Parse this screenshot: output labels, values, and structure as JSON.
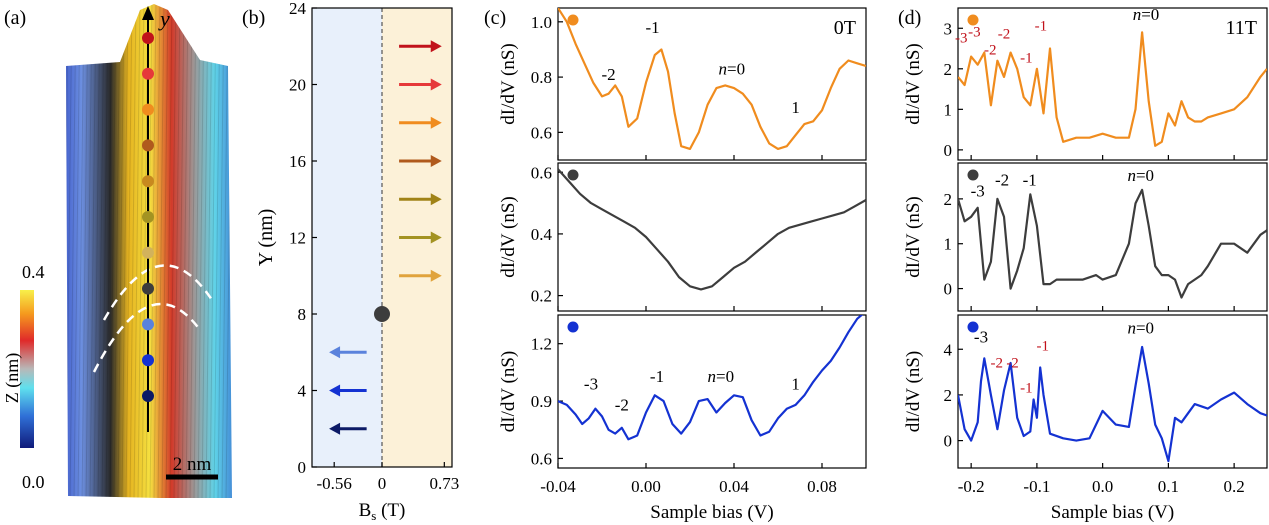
{
  "figure": {
    "panel_labels": [
      "(a)",
      "(b)",
      "(c)",
      "(d)"
    ]
  },
  "panel_a": {
    "axis_label": "y",
    "colorbar": {
      "label": "Z (nm)",
      "max_label": "0.4",
      "min_label": "0.0"
    },
    "scalebar_label": "2 nm",
    "dot_colors": [
      "#c1121b",
      "#e6393a",
      "#f08c1e",
      "#b05a1d",
      "#c8891f",
      "#a39322",
      "#d2b25c",
      "#3d3d3d",
      "#5a82dc",
      "#1432d2",
      "#0c1a66"
    ]
  },
  "chart_data": [
    {
      "id": "b",
      "type": "scatter",
      "title": "(b)",
      "xlabel": "Bs (T)",
      "ylabel": "Y (nm)",
      "xlim": [
        -0.82,
        0.82
      ],
      "ylim": [
        0,
        24
      ],
      "xticks": [
        "-0.56",
        "0",
        "0.73"
      ],
      "xtick_values": [
        -0.56,
        0,
        0.73
      ],
      "yticks": [
        0,
        4,
        8,
        12,
        16,
        20,
        24
      ],
      "regions": [
        {
          "from": -0.82,
          "to": 0,
          "color": "#e8f0fb"
        },
        {
          "from": 0,
          "to": 0.82,
          "color": "#fcf1d8"
        }
      ],
      "points": [
        {
          "x": 0,
          "y": 8,
          "color": "#3d3d3d"
        }
      ],
      "arrows": [
        {
          "y": 22,
          "dir": 1,
          "color": "#c1121b"
        },
        {
          "y": 20,
          "dir": 1,
          "color": "#e6393a"
        },
        {
          "y": 18,
          "dir": 1,
          "color": "#f08c1e"
        },
        {
          "y": 16,
          "dir": 1,
          "color": "#b05a1d"
        },
        {
          "y": 14,
          "dir": 1,
          "color": "#a08317"
        },
        {
          "y": 12,
          "dir": 1,
          "color": "#a39322"
        },
        {
          "y": 10,
          "dir": 1,
          "color": "#e0a33c"
        },
        {
          "y": 6,
          "dir": -1,
          "color": "#5a82dc"
        },
        {
          "y": 4,
          "dir": -1,
          "color": "#1432d2"
        },
        {
          "y": 2,
          "dir": -1,
          "color": "#0c1a66"
        }
      ]
    },
    {
      "id": "c",
      "type": "line",
      "title": "(c)",
      "xlabel": "Sample bias (V)",
      "xlim": [
        -0.04,
        0.1
      ],
      "xticks": [
        "-0.04",
        "0.00",
        "0.04",
        "0.08"
      ],
      "xtick_values": [
        -0.04,
        0.0,
        0.04,
        0.08
      ],
      "subplots": [
        {
          "ylabel": "dI/dV (nS)",
          "ylim": [
            0.5,
            1.05
          ],
          "yticks": [
            0.6,
            0.8,
            1.0
          ],
          "ytick_labels": [
            "0.6",
            "0.8",
            "1.0"
          ],
          "color": "#f08c1e",
          "field_label": "0T",
          "x": [
            -0.04,
            -0.036,
            -0.032,
            -0.028,
            -0.024,
            -0.02,
            -0.017,
            -0.014,
            -0.011,
            -0.008,
            -0.004,
            0,
            0.004,
            0.007,
            0.01,
            0.013,
            0.016,
            0.02,
            0.024,
            0.028,
            0.032,
            0.036,
            0.04,
            0.044,
            0.048,
            0.052,
            0.056,
            0.06,
            0.064,
            0.068,
            0.072,
            0.076,
            0.08,
            0.084,
            0.088,
            0.092,
            0.096,
            0.1
          ],
          "y": [
            1.05,
            1.0,
            0.92,
            0.85,
            0.78,
            0.73,
            0.74,
            0.77,
            0.73,
            0.62,
            0.65,
            0.78,
            0.88,
            0.9,
            0.82,
            0.67,
            0.55,
            0.54,
            0.6,
            0.7,
            0.76,
            0.77,
            0.76,
            0.74,
            0.7,
            0.62,
            0.56,
            0.54,
            0.55,
            0.59,
            0.63,
            0.64,
            0.68,
            0.76,
            0.83,
            0.86,
            0.85,
            0.84
          ],
          "annotations": [
            {
              "text": "-2",
              "x": -0.017,
              "y": 0.79,
              "color": "#000000"
            },
            {
              "text": "-1",
              "x": 0.003,
              "y": 0.96,
              "color": "#000000"
            },
            {
              "text": "n=0",
              "x": 0.039,
              "y": 0.81,
              "color": "#000000"
            },
            {
              "text": "1",
              "x": 0.068,
              "y": 0.67,
              "color": "#000000"
            }
          ]
        },
        {
          "ylabel": "dI/dV (nS)",
          "ylim": [
            0.15,
            0.63
          ],
          "yticks": [
            0.2,
            0.4,
            0.6
          ],
          "ytick_labels": [
            "0.2",
            "0.4",
            "0.6"
          ],
          "color": "#3d3d3d",
          "x": [
            -0.04,
            -0.035,
            -0.03,
            -0.025,
            -0.02,
            -0.015,
            -0.01,
            -0.005,
            0,
            0.005,
            0.01,
            0.015,
            0.02,
            0.025,
            0.03,
            0.035,
            0.04,
            0.045,
            0.05,
            0.055,
            0.06,
            0.065,
            0.07,
            0.075,
            0.08,
            0.085,
            0.09,
            0.095,
            0.1
          ],
          "y": [
            0.61,
            0.57,
            0.53,
            0.5,
            0.48,
            0.46,
            0.44,
            0.42,
            0.39,
            0.35,
            0.31,
            0.26,
            0.23,
            0.22,
            0.23,
            0.26,
            0.29,
            0.31,
            0.34,
            0.37,
            0.4,
            0.42,
            0.43,
            0.44,
            0.45,
            0.46,
            0.47,
            0.49,
            0.51
          ],
          "annotations": []
        },
        {
          "ylabel": "dI/dV (nS)",
          "ylim": [
            0.55,
            1.35
          ],
          "yticks": [
            0.6,
            0.9,
            1.2
          ],
          "ytick_labels": [
            "0.6",
            "0.9",
            "1.2"
          ],
          "color": "#1432d2",
          "x": [
            -0.04,
            -0.036,
            -0.032,
            -0.029,
            -0.026,
            -0.023,
            -0.02,
            -0.017,
            -0.014,
            -0.011,
            -0.008,
            -0.004,
            0,
            0.004,
            0.008,
            0.012,
            0.016,
            0.02,
            0.024,
            0.028,
            0.032,
            0.036,
            0.04,
            0.044,
            0.048,
            0.052,
            0.056,
            0.06,
            0.064,
            0.068,
            0.072,
            0.076,
            0.08,
            0.084,
            0.088,
            0.092,
            0.096,
            0.1
          ],
          "y": [
            0.9,
            0.88,
            0.83,
            0.78,
            0.81,
            0.86,
            0.82,
            0.75,
            0.73,
            0.76,
            0.7,
            0.72,
            0.84,
            0.93,
            0.9,
            0.78,
            0.73,
            0.79,
            0.9,
            0.91,
            0.84,
            0.89,
            0.93,
            0.92,
            0.8,
            0.72,
            0.74,
            0.81,
            0.86,
            0.88,
            0.93,
            1.0,
            1.06,
            1.11,
            1.18,
            1.26,
            1.33,
            1.37
          ],
          "annotations": [
            {
              "text": "-3",
              "x": -0.025,
              "y": 0.96,
              "color": "#000000"
            },
            {
              "text": "-2",
              "x": -0.011,
              "y": 0.85,
              "color": "#000000"
            },
            {
              "text": "-1",
              "x": 0.005,
              "y": 1.0,
              "color": "#000000"
            },
            {
              "text": "n=0",
              "x": 0.034,
              "y": 1.0,
              "color": "#000000"
            },
            {
              "text": "1",
              "x": 0.068,
              "y": 0.96,
              "color": "#000000"
            }
          ]
        }
      ]
    },
    {
      "id": "d",
      "type": "line",
      "title": "(d)",
      "xlabel": "Sample bias (V)",
      "xlim": [
        -0.22,
        0.25
      ],
      "xticks": [
        "-0.2",
        "-0.1",
        "0.0",
        "0.1",
        "0.2"
      ],
      "xtick_values": [
        -0.2,
        -0.1,
        0.0,
        0.1,
        0.2
      ],
      "subplots": [
        {
          "ylabel": "dI/dV (nS)",
          "ylim": [
            -0.25,
            3.5
          ],
          "yticks": [
            0,
            1,
            2,
            3
          ],
          "ytick_labels": [
            "0",
            "1",
            "2",
            "3"
          ],
          "color": "#f08c1e",
          "field_label": "11T",
          "x": [
            -0.22,
            -0.21,
            -0.2,
            -0.19,
            -0.18,
            -0.17,
            -0.16,
            -0.15,
            -0.14,
            -0.13,
            -0.12,
            -0.11,
            -0.1,
            -0.09,
            -0.08,
            -0.07,
            -0.06,
            -0.04,
            -0.02,
            0,
            0.02,
            0.04,
            0.05,
            0.06,
            0.07,
            0.08,
            0.09,
            0.1,
            0.11,
            0.12,
            0.13,
            0.14,
            0.15,
            0.16,
            0.18,
            0.2,
            0.22,
            0.24,
            0.25
          ],
          "y": [
            1.8,
            1.6,
            2.3,
            2.1,
            2.4,
            1.1,
            2.2,
            1.8,
            2.4,
            2.0,
            1.3,
            1.1,
            2.0,
            0.9,
            2.5,
            0.8,
            0.2,
            0.3,
            0.3,
            0.4,
            0.3,
            0.3,
            1.0,
            2.9,
            1.2,
            0.1,
            0.2,
            0.9,
            0.6,
            1.2,
            0.8,
            0.7,
            0.7,
            0.8,
            0.9,
            1.0,
            1.3,
            1.8,
            2.0
          ],
          "annotations": [
            {
              "text": "-3",
              "x": -0.215,
              "y": 2.65,
              "color": "#c1121b"
            },
            {
              "text": "-3",
              "x": -0.195,
              "y": 2.8,
              "color": "#c1121b"
            },
            {
              "text": "-2",
              "x": -0.171,
              "y": 2.35,
              "color": "#c1121b"
            },
            {
              "text": "-2",
              "x": -0.15,
              "y": 2.75,
              "color": "#c1121b"
            },
            {
              "text": "-1",
              "x": -0.116,
              "y": 2.15,
              "color": "#c1121b"
            },
            {
              "text": "-1",
              "x": -0.094,
              "y": 2.95,
              "color": "#c1121b"
            },
            {
              "text": "n=0",
              "x": 0.066,
              "y": 3.2,
              "color": "#000000"
            }
          ]
        },
        {
          "ylabel": "dI/dV (nS)",
          "ylim": [
            -0.5,
            2.8
          ],
          "yticks": [
            0,
            1,
            2
          ],
          "ytick_labels": [
            "0",
            "1",
            "2"
          ],
          "color": "#3d3d3d",
          "x": [
            -0.22,
            -0.21,
            -0.2,
            -0.19,
            -0.18,
            -0.17,
            -0.16,
            -0.15,
            -0.14,
            -0.13,
            -0.12,
            -0.11,
            -0.1,
            -0.09,
            -0.08,
            -0.07,
            -0.05,
            -0.03,
            -0.01,
            0,
            0.02,
            0.04,
            0.05,
            0.06,
            0.07,
            0.08,
            0.09,
            0.1,
            0.11,
            0.12,
            0.13,
            0.14,
            0.15,
            0.16,
            0.18,
            0.2,
            0.22,
            0.24,
            0.25
          ],
          "y": [
            2.0,
            1.5,
            1.6,
            1.8,
            0.2,
            0.6,
            2.0,
            1.6,
            0.0,
            0.4,
            0.9,
            2.1,
            1.4,
            0.1,
            0.1,
            0.2,
            0.2,
            0.2,
            0.3,
            0.2,
            0.3,
            1.0,
            1.9,
            2.2,
            1.4,
            0.5,
            0.3,
            0.3,
            0.2,
            -0.2,
            0.1,
            0.2,
            0.3,
            0.5,
            1.0,
            1.0,
            0.8,
            1.2,
            1.3
          ],
          "annotations": [
            {
              "text": "-3",
              "x": -0.19,
              "y": 2.05,
              "color": "#000000"
            },
            {
              "text": "-2",
              "x": -0.153,
              "y": 2.3,
              "color": "#000000"
            },
            {
              "text": "-1",
              "x": -0.111,
              "y": 2.3,
              "color": "#000000"
            },
            {
              "text": "n=0",
              "x": 0.058,
              "y": 2.4,
              "color": "#000000"
            }
          ]
        },
        {
          "ylabel": "dI/dV (nS)",
          "ylim": [
            -1.2,
            5.5
          ],
          "yticks": [
            0,
            2,
            4
          ],
          "ytick_labels": [
            "0",
            "2",
            "4"
          ],
          "color": "#1432d2",
          "x": [
            -0.22,
            -0.21,
            -0.2,
            -0.19,
            -0.185,
            -0.18,
            -0.17,
            -0.16,
            -0.15,
            -0.14,
            -0.13,
            -0.12,
            -0.11,
            -0.105,
            -0.1,
            -0.095,
            -0.09,
            -0.08,
            -0.06,
            -0.04,
            -0.02,
            0,
            0.02,
            0.04,
            0.05,
            0.06,
            0.07,
            0.08,
            0.09,
            0.1,
            0.11,
            0.12,
            0.13,
            0.14,
            0.16,
            0.18,
            0.2,
            0.22,
            0.24,
            0.25
          ],
          "y": [
            2.0,
            0.5,
            0.0,
            0.8,
            2.6,
            3.6,
            2.0,
            0.5,
            2.2,
            3.4,
            1.0,
            0.2,
            0.4,
            1.8,
            1.0,
            3.2,
            2.0,
            0.3,
            0.1,
            0.0,
            0.1,
            1.3,
            0.7,
            0.6,
            2.4,
            4.1,
            2.5,
            0.7,
            0.1,
            -0.9,
            1.0,
            0.8,
            1.2,
            1.6,
            1.4,
            1.8,
            2.1,
            1.6,
            1.2,
            1.1
          ],
          "annotations": [
            {
              "text": "-3",
              "x": -0.185,
              "y": 4.3,
              "color": "#000000"
            },
            {
              "text": "-2",
              "x": -0.161,
              "y": 3.2,
              "color": "#c1121b"
            },
            {
              "text": "-2",
              "x": -0.137,
              "y": 3.2,
              "color": "#c1121b"
            },
            {
              "text": "-1",
              "x": -0.116,
              "y": 2.1,
              "color": "#c1121b"
            },
            {
              "text": "-1",
              "x": -0.091,
              "y": 3.95,
              "color": "#c1121b"
            },
            {
              "text": "n=0",
              "x": 0.058,
              "y": 4.7,
              "color": "#000000"
            }
          ]
        }
      ]
    }
  ]
}
